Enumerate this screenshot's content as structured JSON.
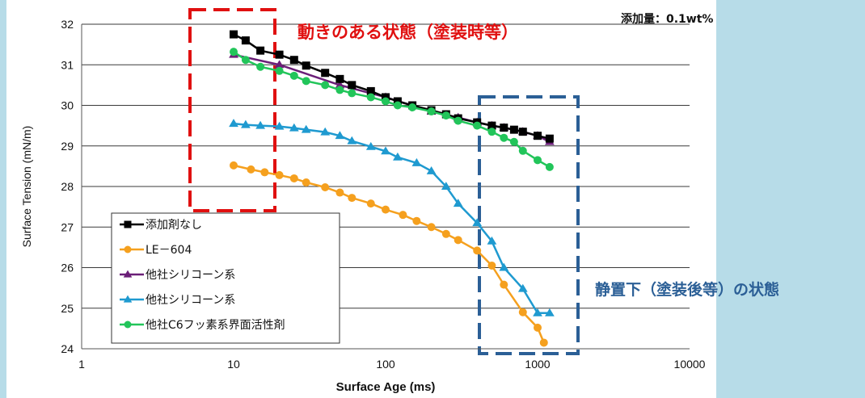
{
  "notes": {
    "amount": "添加量：0.1wt%",
    "dynamic_state": "動きのある状態（塗装時等）",
    "static_state": "静置下（塗装後等）の状態"
  },
  "colors": {
    "background": "#b7dce8",
    "dynamic_box": "#e01010",
    "static_box": "#2b5f96"
  },
  "chart_data": {
    "type": "line",
    "xlabel": "Surface Age (ms)",
    "ylabel": "Surface Tension (mN/m)",
    "x_scale": "log",
    "xlim": [
      1,
      10000
    ],
    "ylim": [
      24,
      32
    ],
    "x_ticks": [
      1,
      10,
      100,
      1000,
      10000
    ],
    "x_tick_labels": [
      "1",
      "10",
      "100",
      "1000",
      "10000"
    ],
    "y_ticks": [
      24,
      25,
      26,
      27,
      28,
      29,
      30,
      31,
      32
    ],
    "y_tick_labels": [
      "24",
      "25",
      "26",
      "27",
      "28",
      "29",
      "30",
      "31",
      "32"
    ],
    "grid": "horizontal",
    "legend_position": "bottom-left",
    "series": [
      {
        "name": "添加剤なし",
        "color": "#000000",
        "marker": "square",
        "x": [
          10,
          12,
          15,
          20,
          25,
          30,
          40,
          50,
          60,
          80,
          100,
          120,
          150,
          200,
          250,
          300,
          400,
          500,
          600,
          700,
          800,
          1000,
          1200
        ],
        "y": [
          31.75,
          31.6,
          31.35,
          31.25,
          31.12,
          30.98,
          30.8,
          30.65,
          30.5,
          30.35,
          30.2,
          30.1,
          30.0,
          29.88,
          29.78,
          29.68,
          29.58,
          29.5,
          29.45,
          29.4,
          29.35,
          29.25,
          29.18
        ]
      },
      {
        "name": "LE－604",
        "color": "#f5a01e",
        "marker": "circle",
        "x": [
          10,
          13,
          16,
          20,
          25,
          30,
          40,
          50,
          60,
          80,
          100,
          130,
          160,
          200,
          250,
          300,
          400,
          500,
          600,
          800,
          1000,
          1100
        ],
        "y": [
          28.52,
          28.42,
          28.35,
          28.28,
          28.2,
          28.1,
          27.98,
          27.85,
          27.72,
          27.58,
          27.43,
          27.3,
          27.15,
          27.0,
          26.83,
          26.68,
          26.42,
          26.05,
          25.58,
          24.9,
          24.52,
          24.15
        ]
      },
      {
        "name": "他社シリコーン系",
        "color": "#6b1f78",
        "marker": "triangle",
        "x": [
          10,
          20,
          50,
          100,
          200,
          300,
          400,
          500,
          600,
          800,
          1000,
          1200
        ],
        "y": [
          31.25,
          31.0,
          30.5,
          30.2,
          29.85,
          29.7,
          29.58,
          29.5,
          29.45,
          29.35,
          29.25,
          29.1
        ]
      },
      {
        "name": "他社シリコーン系",
        "color": "#1f9ad0",
        "marker": "triangle",
        "x": [
          10,
          12,
          15,
          20,
          25,
          30,
          40,
          50,
          60,
          80,
          100,
          120,
          160,
          200,
          250,
          300,
          400,
          500,
          600,
          800,
          1000,
          1200
        ],
        "y": [
          29.55,
          29.52,
          29.5,
          29.48,
          29.44,
          29.4,
          29.34,
          29.25,
          29.12,
          28.98,
          28.87,
          28.72,
          28.58,
          28.38,
          28.0,
          27.58,
          27.1,
          26.65,
          26.0,
          25.48,
          24.88,
          24.88
        ]
      },
      {
        "name": "他社C6フッ素系界面活性剤",
        "color": "#22c55a",
        "marker": "circle",
        "x": [
          10,
          12,
          15,
          20,
          25,
          30,
          40,
          50,
          60,
          80,
          100,
          120,
          150,
          200,
          250,
          300,
          400,
          500,
          600,
          700,
          800,
          1000,
          1200
        ],
        "y": [
          31.32,
          31.12,
          30.95,
          30.85,
          30.73,
          30.6,
          30.5,
          30.38,
          30.3,
          30.2,
          30.1,
          30.0,
          29.95,
          29.85,
          29.75,
          29.62,
          29.5,
          29.35,
          29.2,
          29.1,
          28.88,
          28.65,
          28.48
        ]
      }
    ]
  }
}
